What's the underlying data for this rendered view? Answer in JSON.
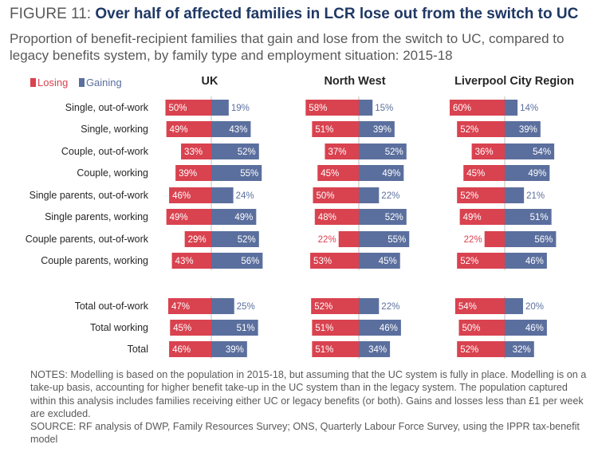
{
  "figure_label": "FIGURE 11:",
  "headline": "Over half of affected families in LCR lose out from the switch to UC",
  "subtitle": "Proportion of benefit-recipient families that gain and lose from the switch to UC, compared to legacy benefits system, by family type and employment situation: 2015-18",
  "legend": {
    "losing": "Losing",
    "gaining": "Gaining"
  },
  "colors": {
    "losing": "#d9424f",
    "gaining": "#5b6f9e",
    "label_light": "#ffffff",
    "label_dark": "#5b6f9e",
    "label_dark_losing": "#d9424f"
  },
  "notes": "NOTES: Modelling is based on the population in 2015-18, but assuming that the UC system is fully in place. Modelling is on a take-up basis, accounting for higher benefit take-up in the UC system than in the legacy system. The population captured within this analysis includes families receiving either UC or legacy benefits (or both). Gains and losses less than £1 per week are excluded.",
  "source": "SOURCE: RF analysis of DWP, Family Resources Survey; ONS, Quarterly Labour Force Survey, using the IPPR tax-benefit model",
  "chart_data": {
    "type": "bar",
    "orientation": "horizontal-diverging",
    "categories": [
      "Single, out-of-work",
      "Single, working",
      "Couple, out-of-work",
      "Couple, working",
      "Single parents, out-of-work",
      "Single parents, working",
      "Couple parents, out-of-work",
      "Couple parents, working",
      "Total out-of-work",
      "Total working",
      "Total"
    ],
    "unit": "%",
    "panels": [
      {
        "title": "UK",
        "series": [
          {
            "name": "Losing",
            "values": [
              50,
              49,
              33,
              39,
              46,
              49,
              29,
              43,
              47,
              45,
              46
            ]
          },
          {
            "name": "Gaining",
            "values": [
              19,
              43,
              52,
              55,
              24,
              49,
              52,
              56,
              25,
              51,
              39
            ]
          }
        ]
      },
      {
        "title": "North West",
        "series": [
          {
            "name": "Losing",
            "values": [
              58,
              51,
              37,
              45,
              50,
              48,
              22,
              53,
              52,
              51,
              51
            ]
          },
          {
            "name": "Gaining",
            "values": [
              15,
              39,
              52,
              49,
              22,
              52,
              55,
              45,
              22,
              46,
              34
            ]
          }
        ]
      },
      {
        "title": "Liverpool City Region",
        "series": [
          {
            "name": "Losing",
            "values": [
              60,
              52,
              36,
              45,
              52,
              49,
              22,
              52,
              54,
              50,
              52
            ]
          },
          {
            "name": "Gaining",
            "values": [
              14,
              39,
              54,
              49,
              21,
              51,
              56,
              46,
              20,
              46,
              32
            ]
          }
        ]
      }
    ],
    "legend_position": "top-left",
    "grid": false
  }
}
